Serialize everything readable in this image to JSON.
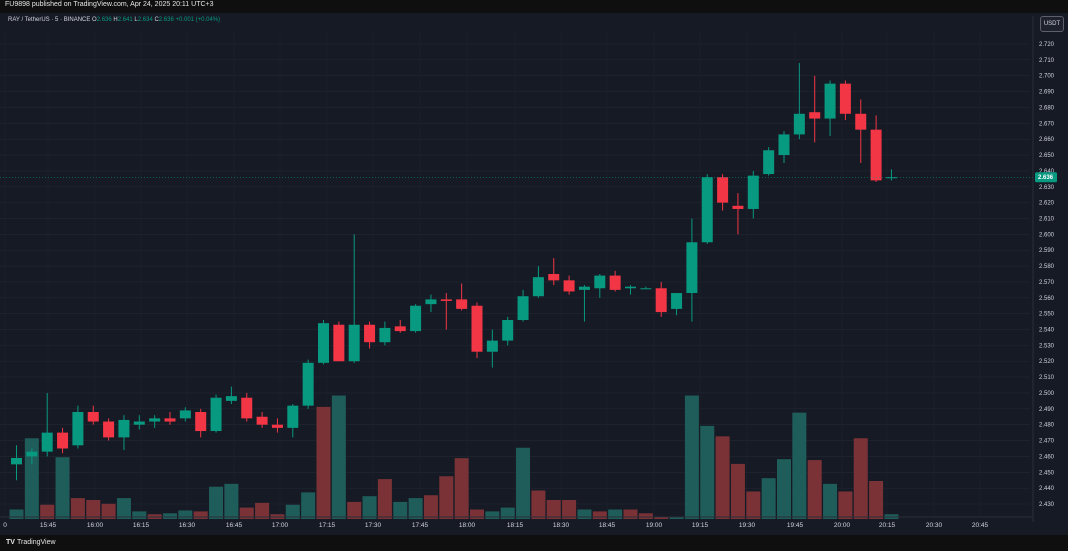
{
  "header": {
    "published": "FU9898 published on TradingView.com, Apr 24, 2025 20:11 UTC+3"
  },
  "legend": {
    "symbol": "RAY / TetherUS · 5 · BINANCE",
    "o_label": "O",
    "o_value": "2.636",
    "h_label": "H",
    "h_value": "2.641",
    "l_label": "L",
    "l_value": "2.634",
    "c_label": "C",
    "c_value": "2.636",
    "change": "+0.001 (+0.04%)"
  },
  "currency_button": "USDT",
  "footer": {
    "logo": "TV",
    "brand": "TradingView"
  },
  "colors": {
    "up": "#089981",
    "down": "#f23645",
    "vol_up": "#1f5d5a",
    "vol_down": "#7a3236",
    "background": "#161a25"
  },
  "chart_data": {
    "type": "candlestick",
    "y_axis": {
      "min": 2.425,
      "max": 2.727,
      "ticks": [
        "2.720",
        "2.710",
        "2.700",
        "2.690",
        "2.680",
        "2.670",
        "2.660",
        "2.650",
        "2.640",
        "2.630",
        "2.620",
        "2.610",
        "2.600",
        "2.590",
        "2.580",
        "2.570",
        "2.560",
        "2.550",
        "2.540",
        "2.530",
        "2.520",
        "2.510",
        "2.500",
        "2.490",
        "2.480",
        "2.470",
        "2.460",
        "2.450",
        "2.440",
        "2.430"
      ],
      "last_price": "2.636"
    },
    "x_axis": {
      "ticks": [
        "0",
        "15:45",
        "16:00",
        "16:15",
        "16:30",
        "16:45",
        "17:00",
        "17:15",
        "17:30",
        "17:45",
        "18:00",
        "18:15",
        "18:30",
        "18:45",
        "19:00",
        "19:15",
        "19:30",
        "19:45",
        "20:00",
        "20:15",
        "20:30",
        "20:45"
      ]
    },
    "candles": [
      {
        "o": 2.455,
        "h": 2.467,
        "l": 2.445,
        "c": 2.459
      },
      {
        "o": 2.46,
        "h": 2.465,
        "l": 2.455,
        "c": 2.463
      },
      {
        "o": 2.463,
        "h": 2.5,
        "l": 2.46,
        "c": 2.475
      },
      {
        "o": 2.475,
        "h": 2.478,
        "l": 2.462,
        "c": 2.465
      },
      {
        "o": 2.467,
        "h": 2.492,
        "l": 2.465,
        "c": 2.488
      },
      {
        "o": 2.488,
        "h": 2.492,
        "l": 2.48,
        "c": 2.482
      },
      {
        "o": 2.482,
        "h": 2.484,
        "l": 2.47,
        "c": 2.472
      },
      {
        "o": 2.472,
        "h": 2.486,
        "l": 2.464,
        "c": 2.483
      },
      {
        "o": 2.48,
        "h": 2.486,
        "l": 2.477,
        "c": 2.482
      },
      {
        "o": 2.482,
        "h": 2.486,
        "l": 2.478,
        "c": 2.484
      },
      {
        "o": 2.484,
        "h": 2.488,
        "l": 2.48,
        "c": 2.482
      },
      {
        "o": 2.484,
        "h": 2.491,
        "l": 2.482,
        "c": 2.489
      },
      {
        "o": 2.488,
        "h": 2.49,
        "l": 2.472,
        "c": 2.476
      },
      {
        "o": 2.476,
        "h": 2.499,
        "l": 2.475,
        "c": 2.497
      },
      {
        "o": 2.495,
        "h": 2.504,
        "l": 2.493,
        "c": 2.498
      },
      {
        "o": 2.497,
        "h": 2.5,
        "l": 2.482,
        "c": 2.484
      },
      {
        "o": 2.485,
        "h": 2.488,
        "l": 2.478,
        "c": 2.48
      },
      {
        "o": 2.48,
        "h": 2.484,
        "l": 2.475,
        "c": 2.478
      },
      {
        "o": 2.478,
        "h": 2.493,
        "l": 2.472,
        "c": 2.492
      },
      {
        "o": 2.492,
        "h": 2.521,
        "l": 2.49,
        "c": 2.519
      },
      {
        "o": 2.519,
        "h": 2.546,
        "l": 2.518,
        "c": 2.544
      },
      {
        "o": 2.543,
        "h": 2.545,
        "l": 2.52,
        "c": 2.52
      },
      {
        "o": 2.52,
        "h": 2.6,
        "l": 2.519,
        "c": 2.543
      },
      {
        "o": 2.543,
        "h": 2.545,
        "l": 2.528,
        "c": 2.532
      },
      {
        "o": 2.532,
        "h": 2.545,
        "l": 2.53,
        "c": 2.541
      },
      {
        "o": 2.542,
        "h": 2.546,
        "l": 2.538,
        "c": 2.539
      },
      {
        "o": 2.539,
        "h": 2.556,
        "l": 2.538,
        "c": 2.555
      },
      {
        "o": 2.556,
        "h": 2.562,
        "l": 2.551,
        "c": 2.559
      },
      {
        "o": 2.559,
        "h": 2.563,
        "l": 2.54,
        "c": 2.558
      },
      {
        "o": 2.559,
        "h": 2.569,
        "l": 2.552,
        "c": 2.553
      },
      {
        "o": 2.555,
        "h": 2.557,
        "l": 2.522,
        "c": 2.526
      },
      {
        "o": 2.526,
        "h": 2.54,
        "l": 2.516,
        "c": 2.533
      },
      {
        "o": 2.533,
        "h": 2.548,
        "l": 2.53,
        "c": 2.546
      },
      {
        "o": 2.546,
        "h": 2.565,
        "l": 2.545,
        "c": 2.561
      },
      {
        "o": 2.561,
        "h": 2.58,
        "l": 2.56,
        "c": 2.573
      },
      {
        "o": 2.575,
        "h": 2.585,
        "l": 2.568,
        "c": 2.571
      },
      {
        "o": 2.571,
        "h": 2.574,
        "l": 2.562,
        "c": 2.564
      },
      {
        "o": 2.565,
        "h": 2.568,
        "l": 2.545,
        "c": 2.567
      },
      {
        "o": 2.566,
        "h": 2.575,
        "l": 2.56,
        "c": 2.574
      },
      {
        "o": 2.574,
        "h": 2.577,
        "l": 2.564,
        "c": 2.565
      },
      {
        "o": 2.566,
        "h": 2.568,
        "l": 2.562,
        "c": 2.567
      },
      {
        "o": 2.566,
        "h": 2.567,
        "l": 2.566,
        "c": 2.566
      },
      {
        "o": 2.566,
        "h": 2.57,
        "l": 2.548,
        "c": 2.551
      },
      {
        "o": 2.553,
        "h": 2.562,
        "l": 2.549,
        "c": 2.563
      },
      {
        "o": 2.563,
        "h": 2.61,
        "l": 2.545,
        "c": 2.595
      },
      {
        "o": 2.595,
        "h": 2.638,
        "l": 2.594,
        "c": 2.636
      },
      {
        "o": 2.636,
        "h": 2.638,
        "l": 2.615,
        "c": 2.62
      },
      {
        "o": 2.618,
        "h": 2.626,
        "l": 2.6,
        "c": 2.616
      },
      {
        "o": 2.616,
        "h": 2.64,
        "l": 2.61,
        "c": 2.637
      },
      {
        "o": 2.638,
        "h": 2.655,
        "l": 2.637,
        "c": 2.653
      },
      {
        "o": 2.65,
        "h": 2.665,
        "l": 2.645,
        "c": 2.663
      },
      {
        "o": 2.663,
        "h": 2.708,
        "l": 2.66,
        "c": 2.676
      },
      {
        "o": 2.677,
        "h": 2.7,
        "l": 2.658,
        "c": 2.673
      },
      {
        "o": 2.673,
        "h": 2.697,
        "l": 2.662,
        "c": 2.695
      },
      {
        "o": 2.695,
        "h": 2.697,
        "l": 2.672,
        "c": 2.676
      },
      {
        "o": 2.676,
        "h": 2.685,
        "l": 2.645,
        "c": 2.666
      },
      {
        "o": 2.666,
        "h": 2.675,
        "l": 2.633,
        "c": 2.634
      },
      {
        "o": 2.636,
        "h": 2.641,
        "l": 2.634,
        "c": 2.636
      }
    ],
    "volume": [
      {
        "v": 0.1,
        "up": true
      },
      {
        "v": 0.85,
        "up": true
      },
      {
        "v": 0.15,
        "up": false
      },
      {
        "v": 0.65,
        "up": true
      },
      {
        "v": 0.22,
        "up": false
      },
      {
        "v": 0.2,
        "up": false
      },
      {
        "v": 0.16,
        "up": false
      },
      {
        "v": 0.22,
        "up": true
      },
      {
        "v": 0.08,
        "up": true
      },
      {
        "v": 0.05,
        "up": false
      },
      {
        "v": 0.06,
        "up": true
      },
      {
        "v": 0.09,
        "up": true
      },
      {
        "v": 0.08,
        "up": false
      },
      {
        "v": 0.34,
        "up": true
      },
      {
        "v": 0.37,
        "up": true
      },
      {
        "v": 0.12,
        "up": false
      },
      {
        "v": 0.17,
        "up": false
      },
      {
        "v": 0.05,
        "up": false
      },
      {
        "v": 0.15,
        "up": true
      },
      {
        "v": 0.28,
        "up": true
      },
      {
        "v": 1.18,
        "up": false
      },
      {
        "v": 1.3,
        "up": true
      },
      {
        "v": 0.18,
        "up": false
      },
      {
        "v": 0.24,
        "up": true
      },
      {
        "v": 0.42,
        "up": false
      },
      {
        "v": 0.18,
        "up": true
      },
      {
        "v": 0.22,
        "up": true
      },
      {
        "v": 0.25,
        "up": false
      },
      {
        "v": 0.45,
        "up": false
      },
      {
        "v": 0.64,
        "up": false
      },
      {
        "v": 0.1,
        "up": false
      },
      {
        "v": 0.08,
        "up": true
      },
      {
        "v": 0.12,
        "up": true
      },
      {
        "v": 0.75,
        "up": true
      },
      {
        "v": 0.3,
        "up": false
      },
      {
        "v": 0.2,
        "up": false
      },
      {
        "v": 0.2,
        "up": false
      },
      {
        "v": 0.1,
        "up": true
      },
      {
        "v": 0.08,
        "up": false
      },
      {
        "v": 0.1,
        "up": true
      },
      {
        "v": 0.1,
        "up": false
      },
      {
        "v": 0.06,
        "up": false
      },
      {
        "v": 0.02,
        "up": false
      },
      {
        "v": 0.02,
        "up": true
      },
      {
        "v": 1.3,
        "up": true
      },
      {
        "v": 0.98,
        "up": true
      },
      {
        "v": 0.87,
        "up": false
      },
      {
        "v": 0.58,
        "up": false
      },
      {
        "v": 0.29,
        "up": false
      },
      {
        "v": 0.43,
        "up": true
      },
      {
        "v": 0.63,
        "up": true
      },
      {
        "v": 1.12,
        "up": true
      },
      {
        "v": 0.62,
        "up": false
      },
      {
        "v": 0.37,
        "up": true
      },
      {
        "v": 0.29,
        "up": false
      },
      {
        "v": 0.85,
        "up": false
      },
      {
        "v": 0.4,
        "up": false
      },
      {
        "v": 0.05,
        "up": true
      }
    ]
  }
}
